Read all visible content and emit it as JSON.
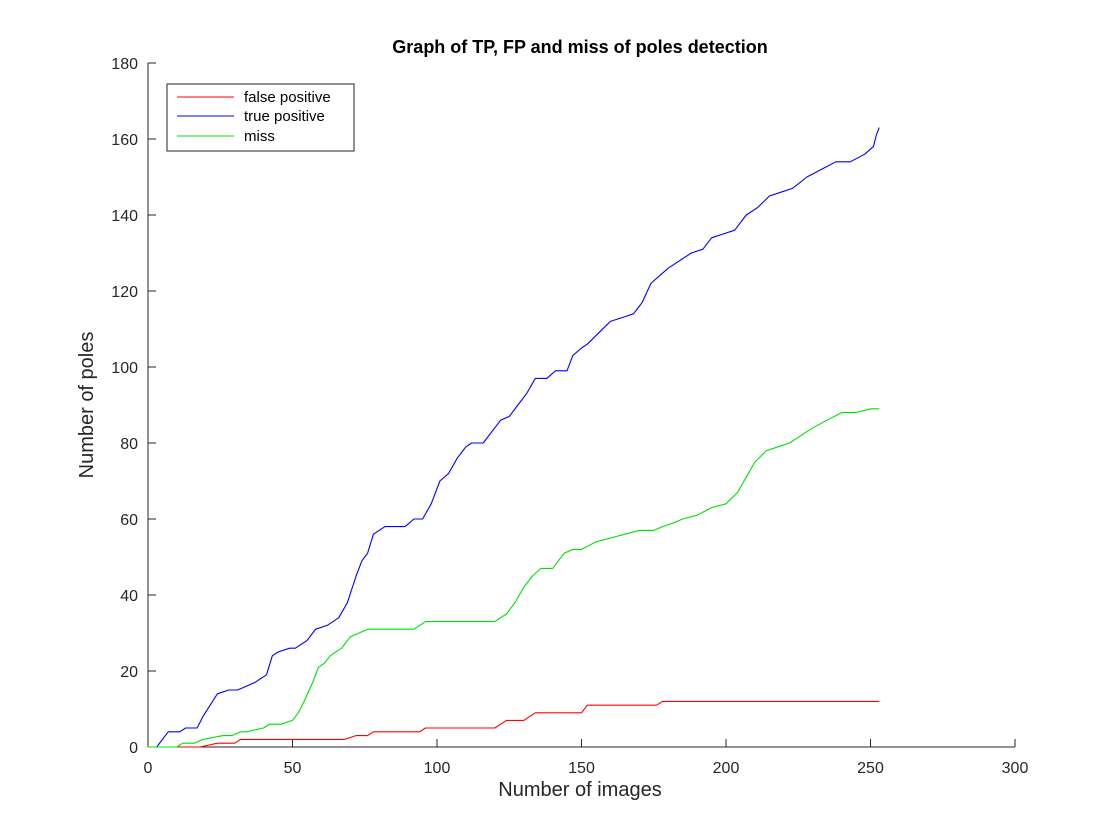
{
  "chart_data": {
    "type": "line",
    "title": "Graph of TP, FP and miss of poles detection",
    "xlabel": "Number of images",
    "ylabel": "Number of poles",
    "xlim": [
      0,
      300
    ],
    "ylim": [
      0,
      180
    ],
    "xticks": [
      "0",
      "50",
      "100",
      "150",
      "200",
      "250",
      "300"
    ],
    "yticks": [
      "0",
      "20",
      "40",
      "60",
      "80",
      "100",
      "120",
      "140",
      "160",
      "180"
    ],
    "grid": false,
    "legend_position": "top-left",
    "series": [
      {
        "name": "false positive",
        "color": "#ff0000",
        "x": [
          0,
          18,
          24,
          30,
          32,
          68,
          72,
          76,
          78,
          94,
          96,
          120,
          124,
          130,
          134,
          150,
          152,
          176,
          178,
          253
        ],
        "y": [
          0,
          0,
          1,
          1,
          2,
          2,
          3,
          3,
          4,
          4,
          5,
          5,
          7,
          7,
          9,
          9,
          11,
          11,
          12,
          12
        ]
      },
      {
        "name": "true positive",
        "color": "#0000ff",
        "x": [
          0,
          3,
          7,
          11,
          13,
          17,
          19,
          24,
          28,
          31,
          34,
          37,
          41,
          43,
          45,
          49,
          51,
          55,
          58,
          62,
          64,
          66,
          69,
          72,
          74,
          76,
          78,
          82,
          89,
          92,
          95,
          98,
          101,
          104,
          107,
          110,
          112,
          116,
          120,
          122,
          125,
          128,
          131,
          134,
          138,
          141,
          145,
          147,
          150,
          152,
          156,
          160,
          164,
          168,
          171,
          174,
          177,
          180,
          184,
          188,
          192,
          195,
          199,
          203,
          207,
          211,
          215,
          219,
          223,
          228,
          233,
          238,
          243,
          248,
          251,
          252,
          253
        ],
        "y": [
          0,
          0,
          4,
          4,
          5,
          5,
          8,
          14,
          15,
          15,
          16,
          17,
          19,
          24,
          25,
          26,
          26,
          28,
          31,
          32,
          33,
          34,
          38,
          45,
          49,
          51,
          56,
          58,
          58,
          60,
          60,
          64,
          70,
          72,
          76,
          79,
          80,
          80,
          84,
          86,
          87,
          90,
          93,
          97,
          97,
          99,
          99,
          103,
          105,
          106,
          109,
          112,
          113,
          114,
          117,
          122,
          124,
          126,
          128,
          130,
          131,
          134,
          135,
          136,
          140,
          142,
          145,
          146,
          147,
          150,
          152,
          154,
          154,
          156,
          158,
          161,
          163
        ]
      },
      {
        "name": "miss",
        "color": "#00e000",
        "x": [
          0,
          10,
          12,
          16,
          19,
          26,
          29,
          32,
          34,
          40,
          42,
          46,
          50,
          52,
          54,
          57,
          59,
          61,
          63,
          67,
          70,
          73,
          76,
          80,
          92,
          96,
          108,
          120,
          124,
          127,
          130,
          133,
          136,
          140,
          144,
          147,
          150,
          155,
          160,
          165,
          170,
          175,
          178,
          182,
          185,
          190,
          195,
          200,
          204,
          207,
          210,
          214,
          218,
          222,
          226,
          230,
          235,
          240,
          245,
          250,
          253
        ],
        "y": [
          0,
          0,
          1,
          1,
          2,
          3,
          3,
          4,
          4,
          5,
          6,
          6,
          7,
          9,
          12,
          17,
          21,
          22,
          24,
          26,
          29,
          30,
          31,
          31,
          31,
          33,
          33,
          33,
          35,
          38,
          42,
          45,
          47,
          47,
          51,
          52,
          52,
          54,
          55,
          56,
          57,
          57,
          58,
          59,
          60,
          61,
          63,
          64,
          67,
          71,
          75,
          78,
          79,
          80,
          82,
          84,
          86,
          88,
          88,
          89,
          89
        ]
      }
    ]
  }
}
